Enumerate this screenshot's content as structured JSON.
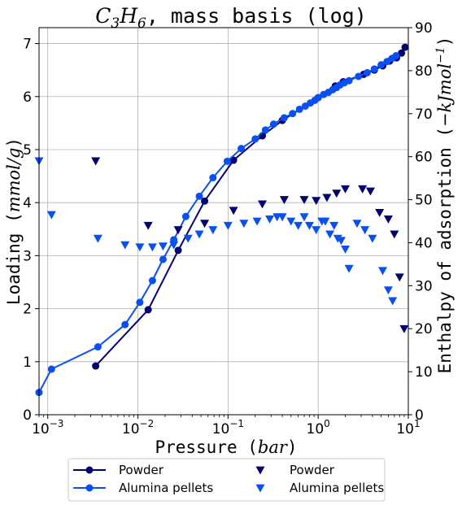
{
  "chart_data": {
    "type": "line",
    "title": {
      "formula": {
        "c": "C",
        "n3": "3",
        "h": "H",
        "n6": "6"
      },
      "suffix": ", mass basis (log)"
    },
    "xlabel": {
      "text": "Pressure (",
      "unit": "bar",
      "close": ")"
    },
    "ylabel_left": {
      "text": "Loading (",
      "unit": "mmol/g",
      "close": ")"
    },
    "ylabel_right": {
      "text": "Enthalpy of adsorption (",
      "unit_pre": "−kJmol",
      "unit_exp": "−1",
      "close": ")"
    },
    "x_scale": "log",
    "xlim": [
      0.0008,
      10
    ],
    "ylim_left": [
      0,
      7.3
    ],
    "ylim_right": [
      0,
      90
    ],
    "grid": true,
    "legend_position": "bottom, below plot, two columns",
    "x_ticks": [
      {
        "base": "10",
        "exp": "−3",
        "value": 0.001
      },
      {
        "base": "10",
        "exp": "−2",
        "value": 0.01
      },
      {
        "base": "10",
        "exp": "−1",
        "value": 0.1
      },
      {
        "base": "10",
        "exp": "0",
        "value": 1
      },
      {
        "base": "10",
        "exp": "1",
        "value": 10
      }
    ],
    "y_ticks_left": [
      "0",
      "1",
      "2",
      "3",
      "4",
      "5",
      "6",
      "7"
    ],
    "y_ticks_right": [
      "0",
      "10",
      "20",
      "30",
      "40",
      "50",
      "60",
      "70",
      "80",
      "90"
    ],
    "series": [
      {
        "name": "Powder",
        "kind": "loading",
        "axis": "left",
        "color": "#00006e",
        "marker": "circle",
        "x": [
          0.0034,
          0.013,
          0.028,
          0.055,
          0.115,
          0.24,
          0.4,
          1.0,
          1.55,
          1.9,
          3.2,
          4.2,
          5.2,
          6.2,
          7.4,
          8.4,
          9.2
        ],
        "y": [
          0.92,
          1.98,
          3.1,
          4.03,
          4.8,
          5.26,
          5.55,
          5.98,
          6.2,
          6.28,
          6.42,
          6.5,
          6.58,
          6.67,
          6.73,
          6.82,
          6.93
        ]
      },
      {
        "name": "Alumina pellets",
        "kind": "loading",
        "axis": "left",
        "color": "#0a50f0",
        "marker": "circle",
        "x": [
          0.0008,
          0.0011,
          0.0036,
          0.0072,
          0.0105,
          0.0145,
          0.019,
          0.025,
          0.034,
          0.048,
          0.068,
          0.098,
          0.14,
          0.2,
          0.26,
          0.32,
          0.42,
          0.52,
          0.62,
          0.72,
          0.82,
          0.92,
          1.0,
          1.15,
          1.3,
          1.45,
          1.6,
          1.75,
          1.95,
          2.2,
          2.8,
          3.5,
          4.2,
          5.0,
          5.8,
          6.6,
          7.3
        ],
        "y": [
          0.42,
          0.86,
          1.28,
          1.7,
          2.12,
          2.53,
          2.93,
          3.3,
          3.74,
          4.12,
          4.47,
          4.78,
          5.02,
          5.2,
          5.37,
          5.48,
          5.6,
          5.68,
          5.76,
          5.82,
          5.88,
          5.93,
          5.98,
          6.04,
          6.08,
          6.13,
          6.17,
          6.22,
          6.26,
          6.3,
          6.38,
          6.45,
          6.52,
          6.6,
          6.66,
          6.72,
          6.77
        ]
      },
      {
        "name": "Powder",
        "kind": "enthalpy",
        "axis": "right",
        "color": "#00006e",
        "marker": "triangle_down",
        "x": [
          0.0034,
          0.013,
          0.028,
          0.055,
          0.115,
          0.24,
          0.42,
          0.7,
          0.95,
          1.25,
          1.6,
          2.0,
          3.1,
          3.8,
          4.8,
          6.0,
          7.0,
          8.0,
          9.0
        ],
        "y": [
          59,
          44,
          43,
          44.5,
          47.5,
          49,
          50,
          50,
          49.8,
          50.5,
          51.5,
          52.5,
          52.5,
          52,
          47,
          45.5,
          42,
          32,
          20
        ]
      },
      {
        "name": "Alumina pellets",
        "kind": "enthalpy",
        "axis": "right",
        "color": "#0a50f0",
        "marker": "triangle_down",
        "x": [
          0.0008,
          0.0011,
          0.0036,
          0.0072,
          0.0105,
          0.0145,
          0.019,
          0.025,
          0.036,
          0.048,
          0.068,
          0.1,
          0.15,
          0.21,
          0.29,
          0.35,
          0.4,
          0.5,
          0.6,
          0.7,
          0.8,
          0.95,
          1.1,
          1.2,
          1.35,
          1.5,
          1.65,
          1.8,
          2.0,
          2.2,
          2.7,
          3.3,
          4.0,
          5.2,
          6.0,
          6.7
        ],
        "y": [
          59,
          46.5,
          41,
          39.5,
          39,
          39,
          39.2,
          39.5,
          41,
          42,
          43,
          44,
          44.5,
          45,
          45.5,
          46,
          46,
          45,
          44,
          46,
          44,
          43,
          45,
          45,
          42,
          44,
          41,
          40.5,
          38.5,
          34,
          44.5,
          43,
          41,
          33.5,
          29,
          26.5
        ]
      }
    ],
    "legend": [
      {
        "label": "Powder",
        "style": "line-marker",
        "color": "#00006e"
      },
      {
        "label": "Alumina pellets",
        "style": "line-marker",
        "color": "#0a50f0"
      },
      {
        "label": "Powder",
        "style": "triangle",
        "color": "#00006e"
      },
      {
        "label": "Alumina pellets",
        "style": "triangle",
        "color": "#0a50f0"
      }
    ]
  }
}
